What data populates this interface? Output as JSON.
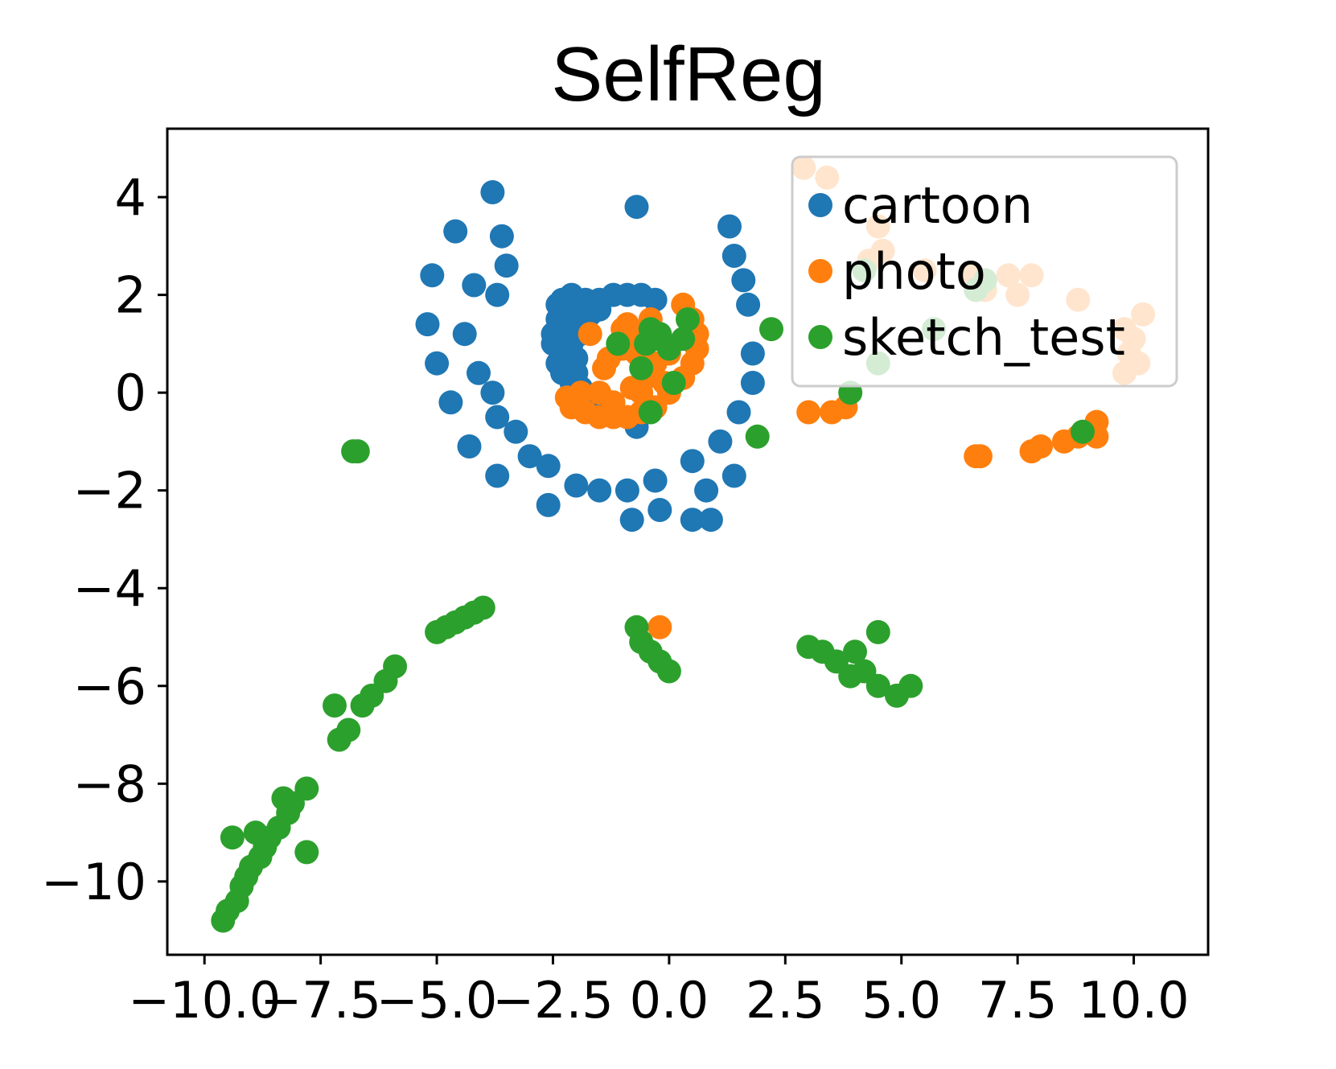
{
  "chart_data": {
    "type": "scatter",
    "title": "SelfReg",
    "xlabel": "",
    "ylabel": "",
    "xlim": [
      -10.8,
      11.6
    ],
    "ylim": [
      -11.5,
      5.4
    ],
    "xticks": [
      -10.0,
      -7.5,
      -5.0,
      -2.5,
      0.0,
      2.5,
      5.0,
      7.5,
      10.0
    ],
    "xtick_labels": [
      "−10.0",
      "−7.5",
      "−5.0",
      "−2.5",
      "0.0",
      "2.5",
      "5.0",
      "7.5",
      "10.0"
    ],
    "yticks": [
      4,
      2,
      0,
      -2,
      -4,
      -6,
      -8,
      -10
    ],
    "ytick_labels": [
      "4",
      "2",
      "0",
      "−2",
      "−4",
      "−6",
      "−8",
      "−10"
    ],
    "grid": false,
    "legend_position": "top-right",
    "series": [
      {
        "name": "cartoon",
        "color": "#1f77b4",
        "x": [
          -3.8,
          -0.7,
          -4.6,
          -3.6,
          -3.5,
          -5.1,
          -4.2,
          -3.7,
          -5.2,
          -4.4,
          -5.0,
          -4.1,
          -3.8,
          -4.7,
          -3.7,
          -4.3,
          -3.3,
          -3.7,
          -3.0,
          -2.6,
          -2.6,
          -2.0,
          -1.5,
          -0.9,
          -0.3,
          -0.2,
          0.5,
          0.8,
          1.3,
          1.4,
          1.6,
          1.7,
          1.8,
          1.8,
          1.5,
          1.1,
          1.4,
          -2.4,
          -2.3,
          -2.1,
          -2.0,
          -1.8,
          -1.5,
          -1.2,
          -0.9,
          -0.6,
          -0.3,
          -2.5,
          -2.4,
          -2.5,
          -2.3,
          -2.2,
          -2.4,
          -2.0,
          -2.3,
          -2.1,
          -1.9,
          -2.2,
          -2.1,
          -2.0,
          -1.9,
          -2.3,
          -2.2,
          -2.2,
          -2.0,
          -1.9,
          -1.7,
          -1.5,
          -2.1,
          -1.7,
          -1.3,
          -0.7,
          -0.8,
          0.9,
          0.5
        ],
        "y": [
          4.1,
          3.8,
          3.3,
          3.2,
          2.6,
          2.4,
          2.2,
          2.0,
          1.4,
          1.2,
          0.6,
          0.4,
          0.0,
          -0.2,
          -0.5,
          -1.1,
          -0.8,
          -1.7,
          -1.3,
          -1.5,
          -2.3,
          -1.9,
          -2.0,
          -2.0,
          -1.8,
          -2.4,
          -1.4,
          -2.0,
          3.4,
          2.8,
          2.3,
          1.8,
          0.8,
          0.2,
          -0.4,
          -1.0,
          -1.7,
          1.8,
          1.9,
          2.0,
          1.9,
          1.9,
          1.9,
          2.0,
          2.0,
          2.0,
          1.9,
          1.2,
          1.5,
          1.0,
          0.8,
          1.6,
          0.6,
          1.7,
          0.4,
          0.2,
          0.1,
          1.3,
          1.0,
          0.7,
          1.5,
          1.1,
          0.9,
          0.5,
          0.4,
          1.2,
          1.6,
          1.7,
          -0.2,
          -0.3,
          -0.4,
          -0.7,
          -2.6,
          -2.6,
          -2.6
        ]
      },
      {
        "name": "photo",
        "color": "#ff7f0e",
        "x": [
          2.9,
          3.4,
          4.5,
          4.6,
          4.3,
          5.5,
          6.5,
          6.8,
          7.3,
          7.5,
          7.8,
          8.8,
          10.2,
          9.8,
          10.0,
          9.9,
          10.1,
          9.8,
          3.0,
          3.5,
          3.8,
          6.6,
          6.7,
          7.8,
          8.0,
          8.5,
          8.8,
          9.0,
          9.2,
          9.2,
          -0.2,
          -1.7,
          -1.9,
          -2.2,
          -2.1,
          -1.8,
          -1.5,
          -1.2,
          -0.9,
          -0.6,
          -0.3,
          0.0,
          0.3,
          0.5,
          0.6,
          0.6,
          0.5,
          0.3,
          -0.4,
          -0.7,
          -1.0,
          -1.4,
          -1.5,
          -1.2,
          -0.8,
          -0.5,
          -0.3,
          -1.0,
          -0.7,
          -0.4,
          -0.1,
          0.0,
          -0.6,
          -1.3,
          -0.9
        ],
        "y": [
          4.6,
          4.4,
          3.4,
          2.9,
          2.7,
          2.5,
          2.4,
          2.1,
          2.4,
          2.0,
          2.4,
          1.9,
          1.6,
          1.3,
          1.1,
          0.8,
          0.6,
          0.4,
          -0.4,
          -0.4,
          -0.3,
          -1.3,
          -1.3,
          -1.2,
          -1.1,
          -1.0,
          -0.9,
          -0.8,
          -0.6,
          -0.9,
          -4.8,
          1.2,
          0.0,
          -0.1,
          -0.3,
          -0.4,
          -0.5,
          -0.5,
          -0.5,
          -0.4,
          -0.3,
          0.0,
          0.3,
          0.6,
          0.9,
          1.2,
          1.5,
          1.8,
          1.5,
          1.2,
          1.3,
          0.5,
          0.0,
          -0.2,
          0.1,
          0.3,
          0.6,
          0.9,
          0.8,
          0.5,
          0.2,
          0.8,
          0.0,
          0.7,
          1.4
        ]
      },
      {
        "name": "sketch_test",
        "color": "#2ca02c",
        "x": [
          -6.8,
          -6.7,
          2.2,
          1.9,
          3.9,
          4.5,
          5.7,
          6.6,
          6.8,
          4.2,
          8.9,
          -0.4,
          -0.6,
          -0.5,
          -0.2,
          0.1,
          0.3,
          0.4,
          -1.1,
          0.0,
          -0.4,
          -0.3,
          -4.0,
          -4.2,
          -4.4,
          -4.6,
          -4.8,
          -5.0,
          -5.9,
          -6.1,
          -6.4,
          -6.6,
          -6.9,
          -7.1,
          -7.2,
          -7.8,
          -8.1,
          -8.2,
          -8.4,
          -8.6,
          -8.7,
          -8.8,
          -9.0,
          -9.1,
          -9.2,
          -9.3,
          -9.5,
          -9.6,
          -8.3,
          -8.9,
          -9.4,
          -7.8,
          -0.7,
          -0.6,
          -0.4,
          -0.2,
          0.0,
          3.0,
          3.3,
          3.6,
          3.9,
          4.2,
          4.5,
          4.9,
          5.2,
          4.5,
          4.0
        ],
        "y": [
          -1.2,
          -1.2,
          1.3,
          -0.9,
          0.0,
          0.6,
          1.3,
          2.1,
          2.3,
          2.5,
          -0.8,
          -0.4,
          0.5,
          1.0,
          1.2,
          0.2,
          1.1,
          1.5,
          1.0,
          0.9,
          1.3,
          1.1,
          -4.4,
          -4.5,
          -4.6,
          -4.7,
          -4.8,
          -4.9,
          -5.6,
          -5.9,
          -6.2,
          -6.4,
          -6.9,
          -7.1,
          -6.4,
          -8.1,
          -8.4,
          -8.6,
          -8.9,
          -9.1,
          -9.3,
          -9.5,
          -9.7,
          -9.9,
          -10.1,
          -10.4,
          -10.6,
          -10.8,
          -8.3,
          -9.0,
          -9.1,
          -9.4,
          -4.8,
          -5.1,
          -5.3,
          -5.5,
          -5.7,
          -5.2,
          -5.3,
          -5.5,
          -5.8,
          -5.7,
          -6.0,
          -6.2,
          -6.0,
          -4.9,
          -5.3
        ]
      }
    ]
  }
}
